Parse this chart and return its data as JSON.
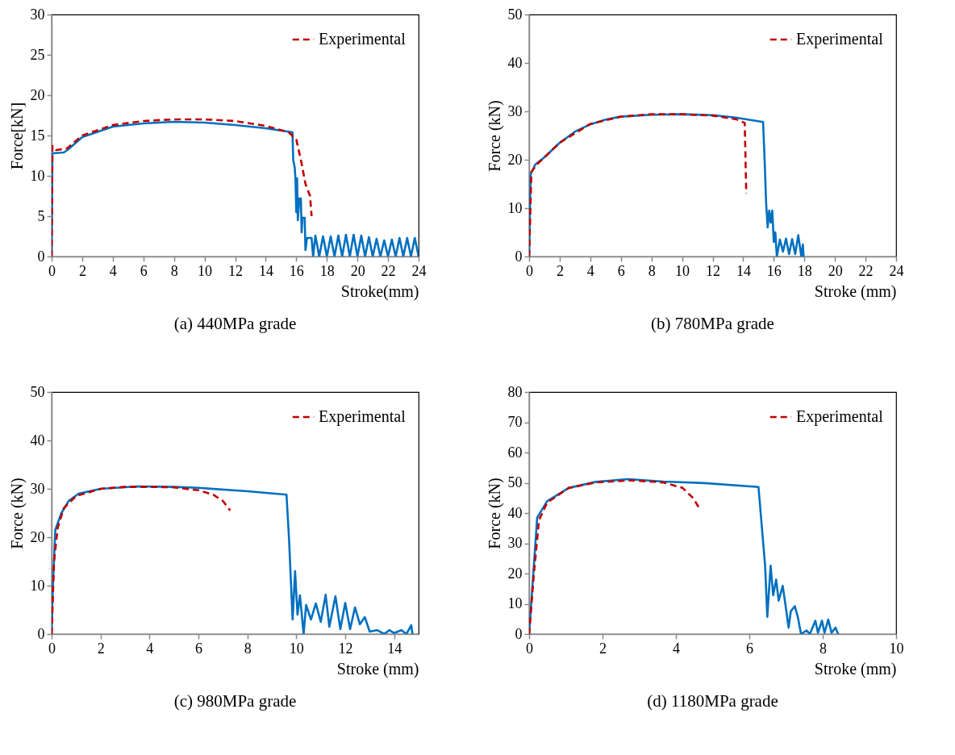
{
  "chart_data": [
    {
      "type": "line",
      "title": "(a) 440MPa grade",
      "xlabel": "Stroke(mm)",
      "ylabel": "Force[kN]",
      "xlim": [
        0,
        24
      ],
      "xticks": [
        0,
        2,
        4,
        6,
        8,
        10,
        12,
        14,
        16,
        18,
        20,
        22,
        24
      ],
      "ylim": [
        0,
        30
      ],
      "yticks": [
        0,
        5,
        10,
        15,
        20,
        25,
        30
      ],
      "legend": "top right",
      "series": [
        {
          "color": "#0070c0",
          "line_style": "solid",
          "x": [
            0,
            0.05,
            0.8,
            1.1,
            2,
            4,
            6,
            8,
            10,
            12,
            14,
            15.75,
            15.8,
            15.9,
            15.95,
            16,
            16.05,
            16.1,
            16.2,
            16.3,
            16.35,
            16.4,
            16.55,
            16.6,
            16.7,
            17,
            17.1,
            17.25,
            17.5,
            17.75,
            18,
            18.25,
            18.5,
            18.75,
            19,
            19.25,
            19.5,
            19.75,
            20,
            20.25,
            20.5,
            20.75,
            21,
            21.25,
            21.5,
            21.75,
            22,
            22.25,
            22.5,
            22.75,
            23,
            23.25,
            23.5,
            23.75,
            24
          ],
          "values": [
            0,
            12.8,
            12.9,
            13.3,
            14.8,
            16.1,
            16.5,
            16.7,
            16.6,
            16.3,
            15.9,
            15.4,
            12,
            11,
            9.5,
            5.5,
            9.7,
            4.5,
            7.2,
            7.2,
            3,
            4.8,
            4.8,
            0.8,
            2.3,
            2.3,
            0,
            2.6,
            0,
            2.5,
            0,
            2.5,
            0,
            2.6,
            0,
            2.7,
            0,
            2.7,
            0,
            2.6,
            0,
            2.4,
            0,
            2.2,
            0,
            2.0,
            0,
            2.1,
            0,
            2.3,
            0,
            2.3,
            0,
            2.3,
            0
          ]
        },
        {
          "name": "Experimental",
          "color": "#c00000",
          "line_style": "dashed",
          "x": [
            0,
            0.05,
            0.3,
            1,
            2,
            4,
            6,
            8,
            10,
            12,
            14,
            15.5,
            16,
            16.3,
            16.6,
            16.9,
            17
          ],
          "values": [
            0,
            13.7,
            13.2,
            13.4,
            15,
            16.3,
            16.8,
            17,
            17,
            16.8,
            16.2,
            15.4,
            14.5,
            12,
            9,
            7.5,
            5
          ]
        }
      ]
    },
    {
      "type": "line",
      "title": "(b) 780MPa grade",
      "xlabel": "Stroke (mm)",
      "ylabel": "Force (kN)",
      "xlim": [
        0,
        24
      ],
      "xticks": [
        0,
        2,
        4,
        6,
        8,
        10,
        12,
        14,
        16,
        18,
        20,
        22,
        24
      ],
      "ylim": [
        0,
        50
      ],
      "yticks": [
        0,
        10,
        20,
        30,
        40,
        50
      ],
      "legend": "top right",
      "series": [
        {
          "color": "#0070c0",
          "line_style": "solid",
          "x": [
            0,
            0.1,
            0.4,
            1,
            2,
            3,
            4,
            5,
            6,
            8,
            10,
            12,
            13.5,
            15.3,
            15.4,
            15.5,
            15.6,
            15.7,
            15.8,
            15.9,
            16,
            16.1,
            16.2,
            16.4,
            16.6,
            16.8,
            17,
            17.2,
            17.4,
            17.6,
            17.8,
            17.9,
            17.95
          ],
          "values": [
            0,
            17,
            19,
            20.5,
            23.5,
            25.8,
            27.3,
            28.3,
            28.9,
            29.3,
            29.4,
            29.2,
            28.7,
            27.8,
            20,
            11,
            6,
            9.5,
            7,
            9.5,
            3,
            5,
            0,
            3.5,
            1,
            3.7,
            0.5,
            3.6,
            0.5,
            4.4,
            0,
            2.5,
            0
          ]
        },
        {
          "name": "Experimental",
          "color": "#c00000",
          "line_style": "dashed",
          "x": [
            0,
            0.15,
            0.5,
            1,
            2,
            4,
            6,
            8,
            10,
            12,
            13.5,
            14.1,
            14.2
          ],
          "values": [
            0,
            17.5,
            19,
            20.5,
            23.5,
            27.4,
            28.9,
            29.4,
            29.4,
            29.1,
            28.4,
            27.6,
            13
          ]
        }
      ]
    },
    {
      "type": "line",
      "title": "(c) 980MPa grade",
      "xlabel": "Stroke (mm)",
      "ylabel": "Force (kN)",
      "xlim": [
        0,
        15
      ],
      "xticks": [
        0,
        2,
        4,
        6,
        8,
        10,
        12,
        14
      ],
      "ylim": [
        0,
        50
      ],
      "yticks": [
        0,
        10,
        20,
        30,
        40,
        50
      ],
      "legend": "top right",
      "series": [
        {
          "color": "#0070c0",
          "line_style": "solid",
          "x": [
            0,
            0.05,
            0.15,
            0.4,
            0.7,
            1.1,
            2,
            3.5,
            5,
            6,
            8,
            9.6,
            9.7,
            9.85,
            9.95,
            10.05,
            10.15,
            10.3,
            10.4,
            10.6,
            10.8,
            11,
            11.2,
            11.35,
            11.6,
            11.8,
            12,
            12.2,
            12.4,
            12.6,
            12.8,
            13,
            13.3,
            13.6,
            13.8,
            14,
            14.3,
            14.5,
            14.7,
            14.75
          ],
          "values": [
            0,
            10,
            21.5,
            25,
            27.5,
            29,
            30,
            30.5,
            30.4,
            30.2,
            29.5,
            28.8,
            20,
            3,
            13,
            4,
            8,
            0,
            6,
            3,
            6.3,
            2.5,
            8.1,
            1.5,
            7.8,
            1,
            6.4,
            1,
            5.5,
            2,
            3.5,
            0.5,
            0.8,
            0,
            0.8,
            0.2,
            0.8,
            0,
            1.8,
            0
          ]
        },
        {
          "name": "Experimental",
          "color": "#c00000",
          "line_style": "dashed",
          "x": [
            0,
            0.1,
            0.25,
            0.5,
            1,
            2,
            3,
            4,
            5,
            6,
            6.6,
            7,
            7.3
          ],
          "values": [
            0,
            15,
            22,
            26,
            28.5,
            30,
            30.4,
            30.4,
            30.3,
            29.7,
            28.8,
            27.5,
            25.5
          ]
        }
      ]
    },
    {
      "type": "line",
      "title": "(d) 1180MPa grade",
      "xlabel": "Stroke (mm)",
      "ylabel": "Force (kN)",
      "xlim": [
        0,
        10
      ],
      "xticks": [
        0,
        2,
        4,
        6,
        8,
        10
      ],
      "ylim": [
        0,
        80
      ],
      "yticks": [
        0,
        10,
        20,
        30,
        40,
        50,
        60,
        70,
        80
      ],
      "legend": "top right",
      "series": [
        {
          "color": "#0070c0",
          "line_style": "solid",
          "x": [
            0,
            0.22,
            0.49,
            1.08,
            1.82,
            2.7,
            3.66,
            4.77,
            6.25,
            6.43,
            6.49,
            6.58,
            6.65,
            6.73,
            6.8,
            6.91,
            6.98,
            7.07,
            7.13,
            7.24,
            7.32,
            7.41,
            7.56,
            7.65,
            7.8,
            7.87,
            7.98,
            8.05,
            8.15,
            8.24,
            8.35,
            8.42
          ],
          "values": [
            0,
            38.5,
            43.9,
            48.3,
            50.3,
            51.2,
            50.4,
            49.9,
            48.6,
            22.6,
            5.7,
            22.6,
            12.8,
            18,
            11,
            15.9,
            10.1,
            2.1,
            7.5,
            9.2,
            5.7,
            0,
            1.2,
            0,
            4.4,
            0.4,
            4.4,
            0.4,
            4.8,
            0.4,
            2.1,
            0
          ]
        },
        {
          "name": "Experimental",
          "color": "#c00000",
          "line_style": "dashed",
          "x": [
            0,
            0.13,
            0.27,
            0.49,
            1.08,
            1.82,
            2.78,
            3.66,
            4.18,
            4.48,
            4.62
          ],
          "values": [
            0,
            19.9,
            37.7,
            43.4,
            48.3,
            50.1,
            50.8,
            50.1,
            48.3,
            44.8,
            41.9
          ]
        }
      ]
    }
  ]
}
